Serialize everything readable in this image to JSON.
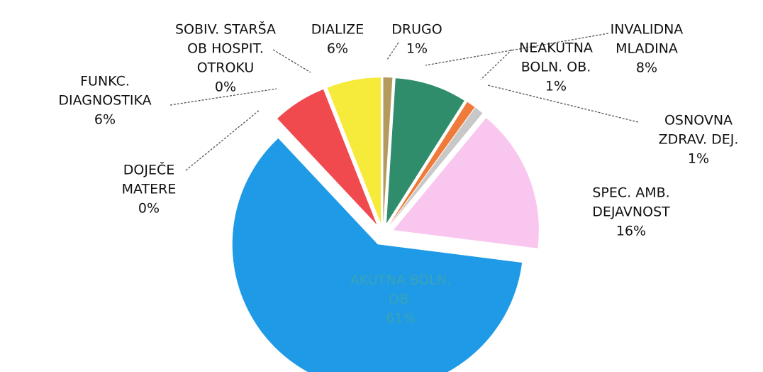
{
  "chart_data": {
    "type": "pie",
    "categories": [
      [
        "DRUGO"
      ],
      [
        "INVALIDNA",
        "MLADINA"
      ],
      [
        "NEAKUTNA",
        "BOLN. OB."
      ],
      [
        "OSNOVNA",
        "ZDRAV. DEJ."
      ],
      [
        "SPEC. AMB.",
        "DEJAVNOST"
      ],
      [
        "AKUTNA BOLN.",
        "OB."
      ],
      [
        "DOJEČE",
        "MATERE"
      ],
      [
        "FUNKC.",
        "DIAGNOSTIKA"
      ],
      [
        "SOBIV. STARŠA",
        "OB HOSPIT.",
        "OTROKU"
      ],
      [
        "DIALIZE"
      ]
    ],
    "values": [
      1,
      8,
      1,
      1,
      16,
      61,
      0,
      6,
      0,
      6
    ],
    "value_labels": [
      "1%",
      "8%",
      "1%",
      "1%",
      "16%",
      "61%",
      "0%",
      "6%",
      "0%",
      "6%"
    ],
    "colors": [
      "#b59a5e",
      "#2f8d6c",
      "#f07a3a",
      "#c8c8c8",
      "#f8c6ee",
      "#1f9ae6",
      "#9ad0f0",
      "#f04a4e",
      "#f5e9a0",
      "#f6ea3a"
    ]
  }
}
